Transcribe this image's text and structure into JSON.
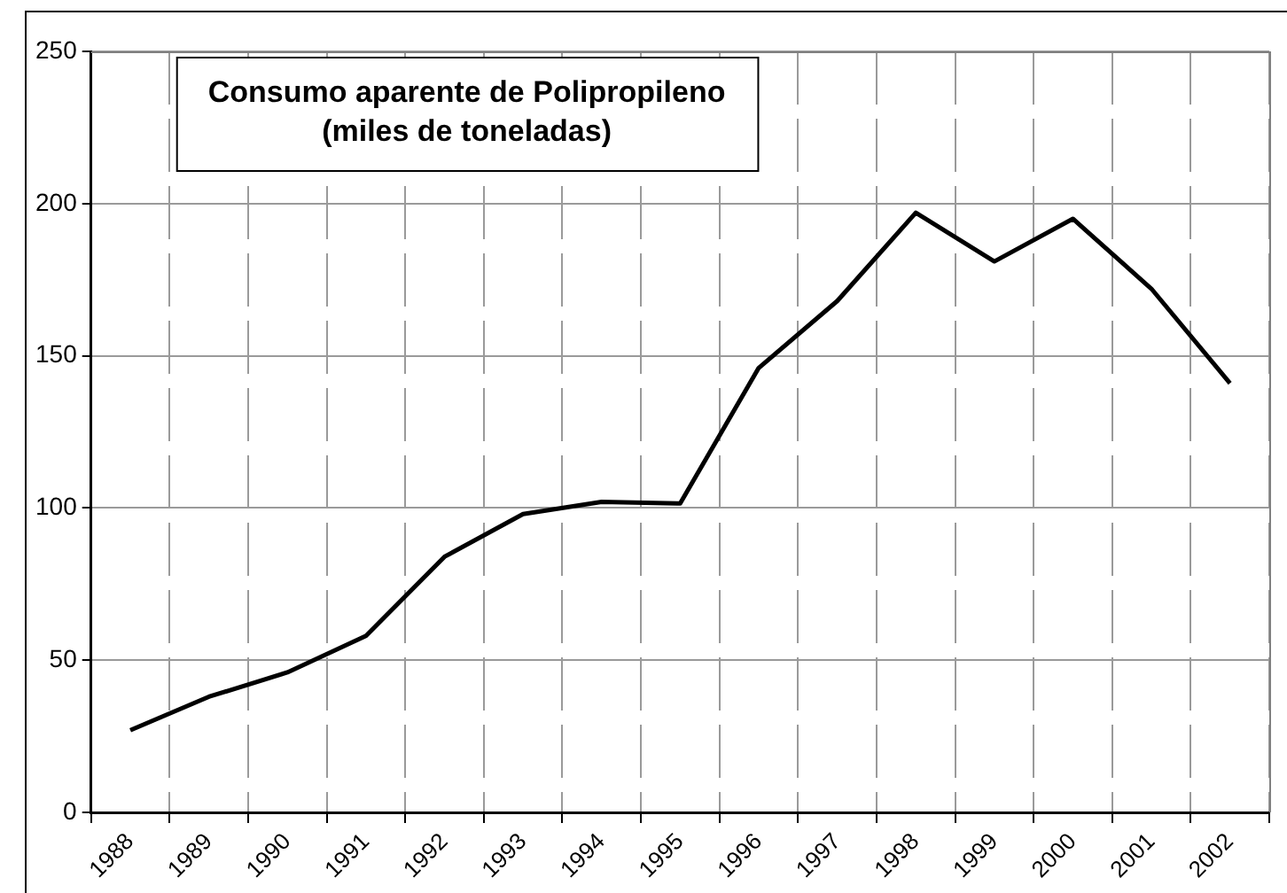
{
  "chart_data": {
    "type": "line",
    "title": "Consumo aparente de Polipropileno\n(miles de toneladas)",
    "categories": [
      "1988",
      "1989",
      "1990",
      "1991",
      "1992",
      "1993",
      "1994",
      "1995",
      "1996",
      "1997",
      "1998",
      "1999",
      "2000",
      "2001",
      "2002"
    ],
    "series": [
      {
        "color": "#000000",
        "values": [
          27,
          38,
          46,
          58,
          84,
          98,
          102,
          101.5,
          146,
          168,
          197,
          181,
          195,
          172,
          141
        ]
      }
    ],
    "ylim": [
      0,
      250
    ],
    "yticks": [
      0,
      50,
      100,
      150,
      200,
      250
    ],
    "grid": true,
    "legend": false,
    "marker": "none",
    "line_style": "solid"
  }
}
